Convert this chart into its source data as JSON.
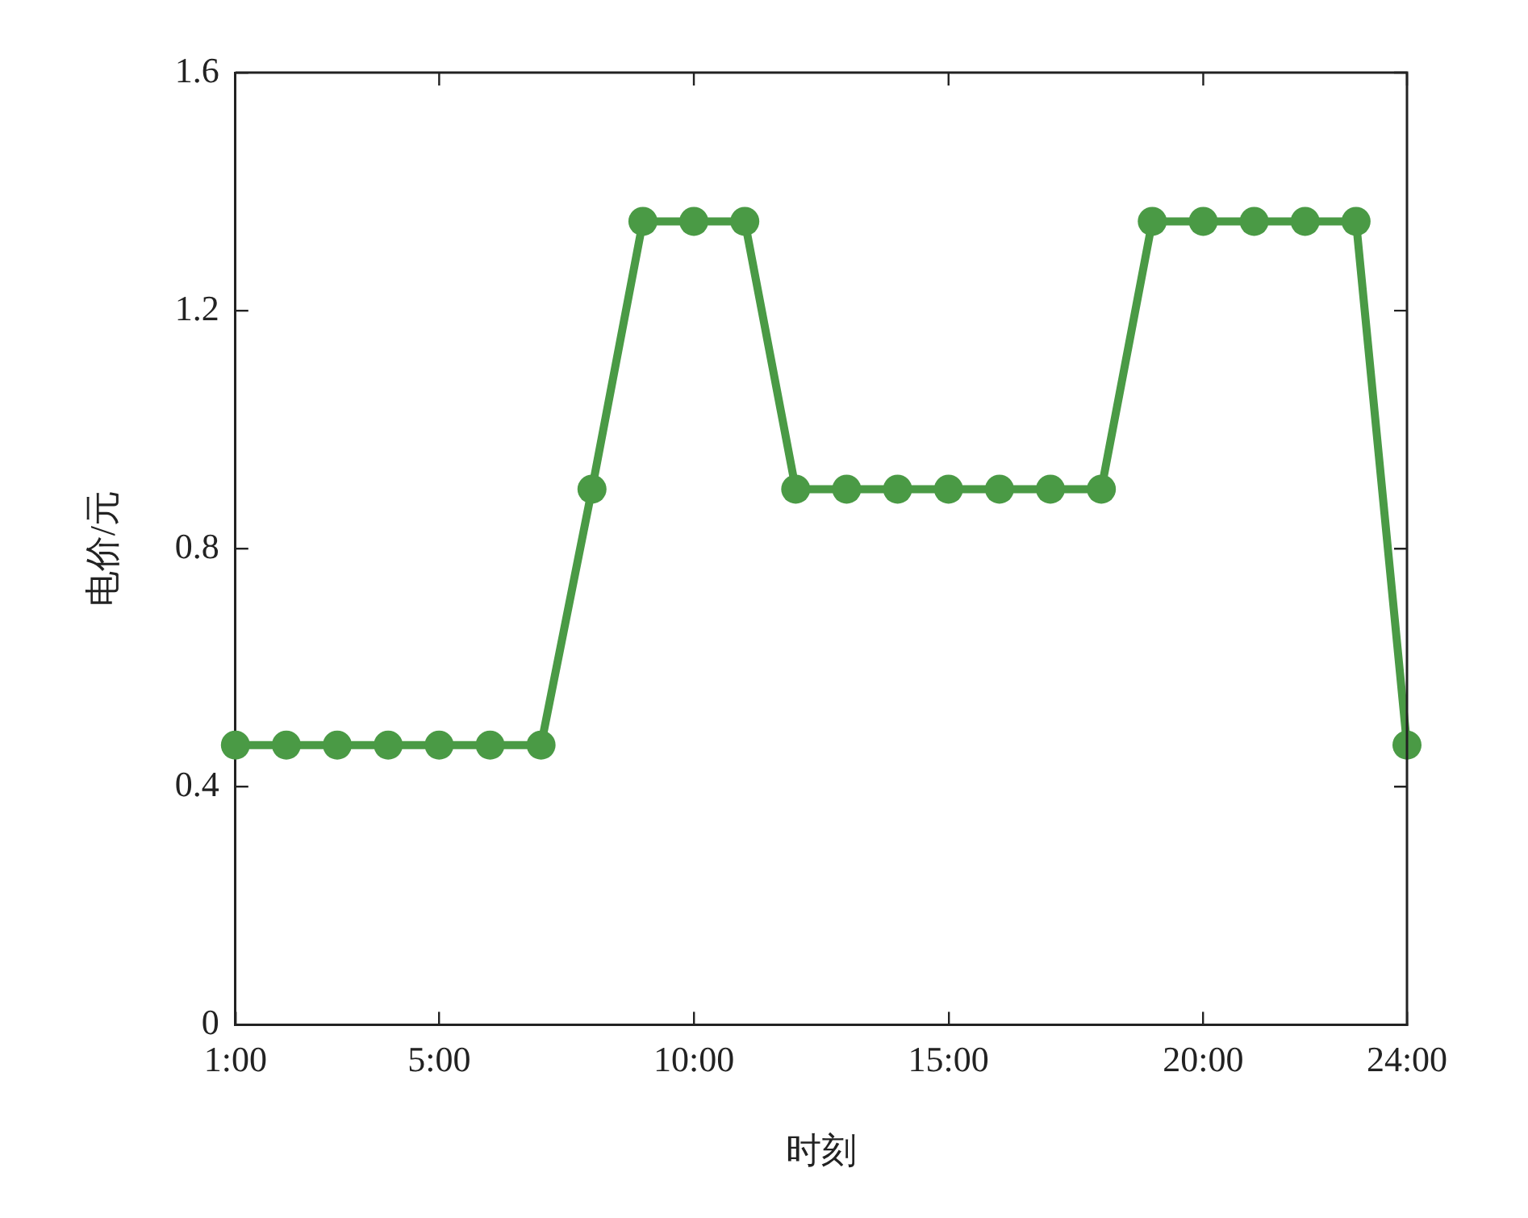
{
  "chart_data": {
    "type": "line",
    "xlabel": "时刻",
    "ylabel": "电价/元",
    "x": [
      1,
      2,
      3,
      4,
      5,
      6,
      7,
      8,
      9,
      10,
      11,
      12,
      13,
      14,
      15,
      16,
      17,
      18,
      19,
      20,
      21,
      22,
      23,
      24
    ],
    "series": [
      {
        "color": "#4a9a45",
        "values": [
          0.47,
          0.47,
          0.47,
          0.47,
          0.47,
          0.47,
          0.47,
          0.9,
          1.35,
          1.35,
          1.35,
          0.9,
          0.9,
          0.9,
          0.9,
          0.9,
          0.9,
          0.9,
          1.35,
          1.35,
          1.35,
          1.35,
          1.35,
          0.47
        ]
      }
    ],
    "xlim": [
      1,
      24
    ],
    "xticks": [
      {
        "value": 1,
        "label": "1:00"
      },
      {
        "value": 5,
        "label": "5:00"
      },
      {
        "value": 10,
        "label": "10:00"
      },
      {
        "value": 15,
        "label": "15:00"
      },
      {
        "value": 20,
        "label": "20:00"
      },
      {
        "value": 24,
        "label": "24:00"
      }
    ],
    "ylim": [
      0,
      1.6
    ],
    "yticks": [
      {
        "value": 0,
        "label": "0"
      },
      {
        "value": 0.4,
        "label": "0.4"
      },
      {
        "value": 0.8,
        "label": "0.8"
      },
      {
        "value": 1.2,
        "label": "1.2"
      },
      {
        "value": 1.6,
        "label": "1.6"
      }
    ],
    "grid": false,
    "legend": false,
    "marker": "circle",
    "line_style": "solid"
  }
}
